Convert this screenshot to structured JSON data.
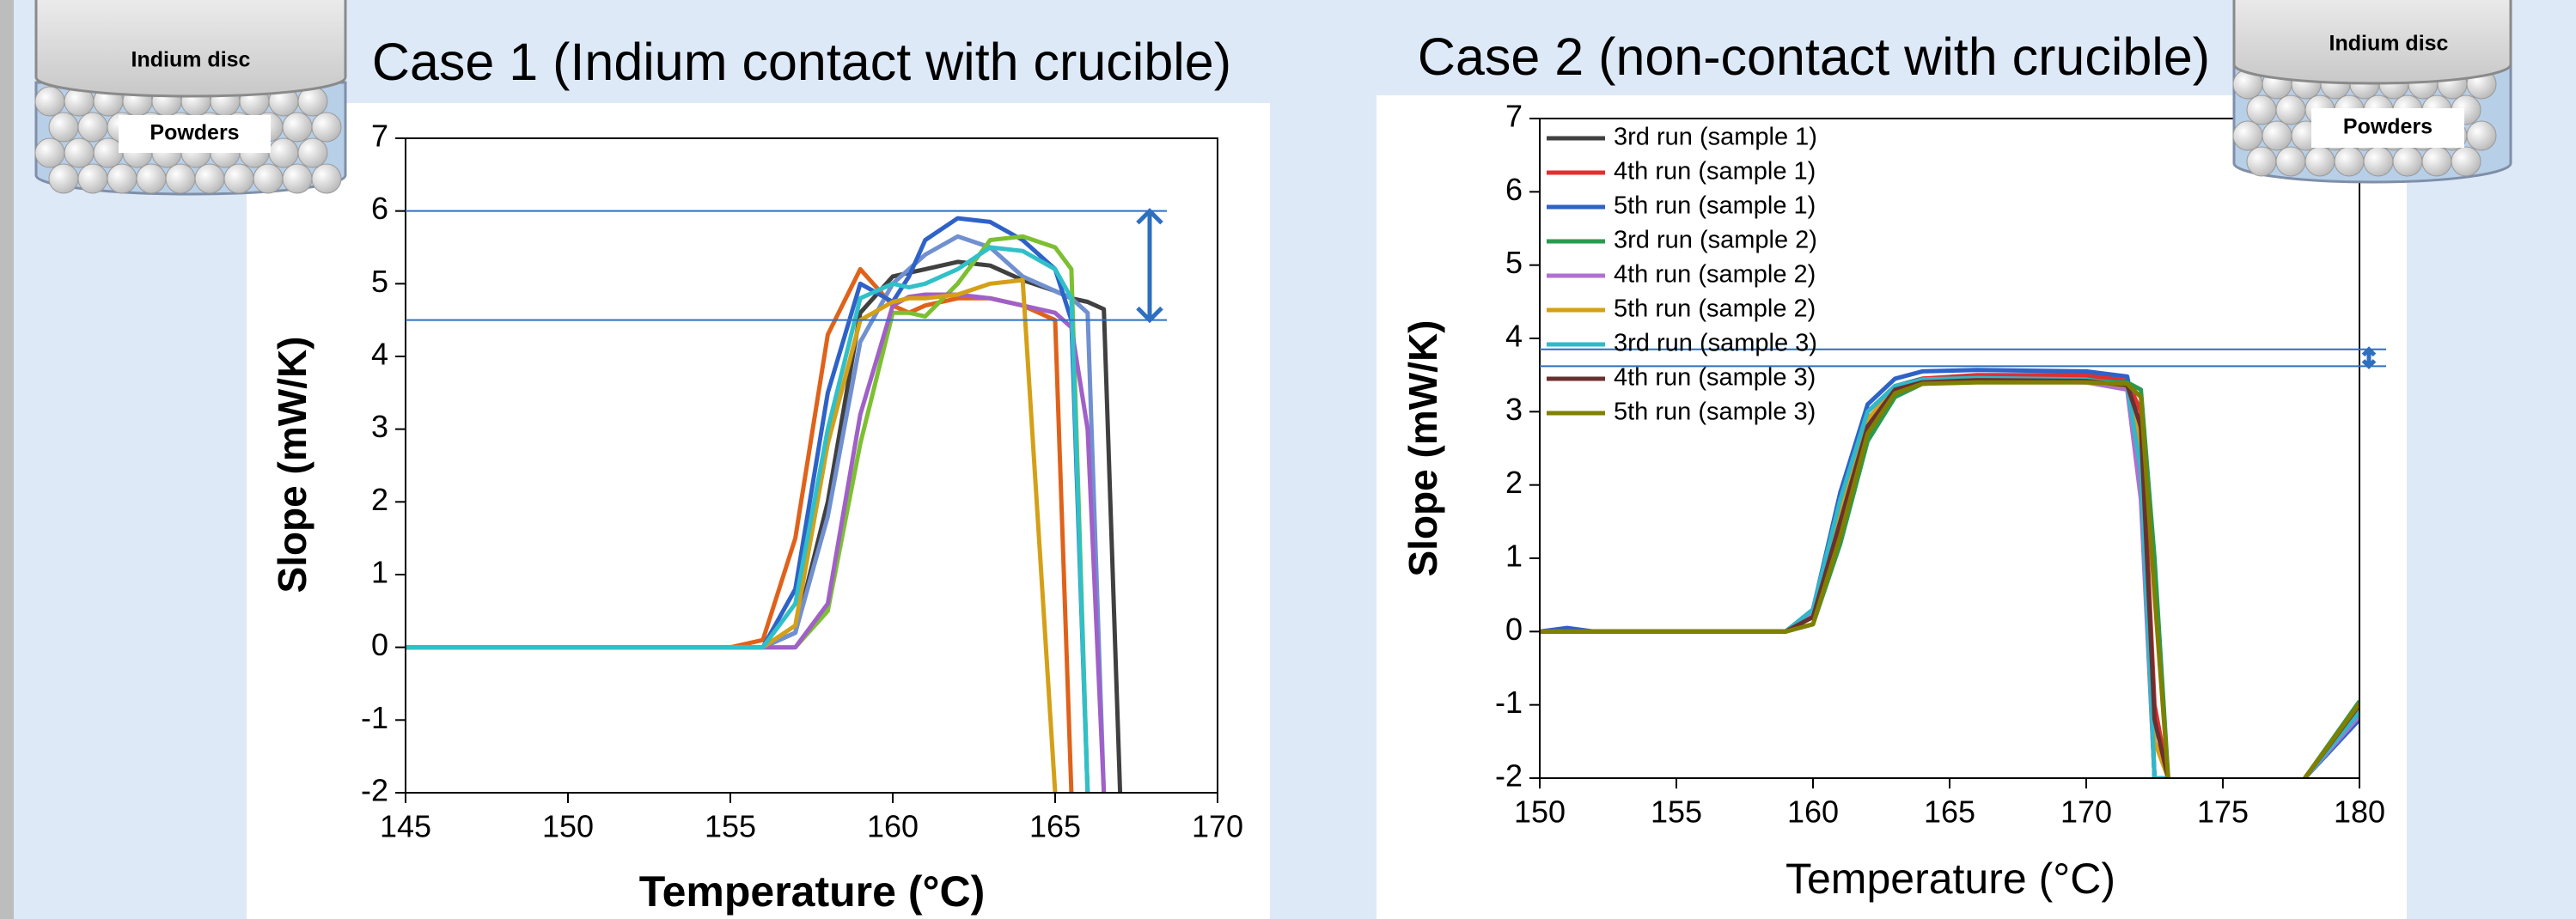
{
  "chart_data": [
    {
      "type": "line",
      "title": "Case 1 (Indium contact with crucible)",
      "x_label": "Temperature (°C)",
      "y_label": "Slope (mW/K)",
      "xlim": [
        145,
        170
      ],
      "xticks": [
        145,
        150,
        155,
        160,
        165,
        170
      ],
      "ylim": [
        -2,
        7
      ],
      "yticks": [
        -2,
        -1,
        0,
        1,
        2,
        3,
        4,
        5,
        6,
        7
      ],
      "hlines": [
        6,
        4.5
      ],
      "hline_color": "#2e6fc0",
      "x": [
        145,
        155,
        156,
        157,
        158,
        159,
        160,
        160.5,
        161,
        162,
        163,
        164,
        165,
        165.5,
        166,
        166.5,
        167
      ],
      "series": [
        {
          "color": "#404040",
          "values": [
            0,
            0,
            0,
            0.2,
            2.0,
            4.6,
            5.1,
            5.15,
            5.2,
            5.3,
            5.25,
            5.05,
            4.9,
            4.8,
            4.75,
            4.65,
            -2
          ]
        },
        {
          "color": "#e0621a",
          "values": [
            0,
            0,
            0.1,
            1.5,
            4.3,
            5.2,
            4.7,
            4.6,
            4.7,
            4.8,
            4.8,
            4.7,
            4.5,
            -2,
            null,
            null,
            null
          ]
        },
        {
          "color": "#7090d0",
          "values": [
            0,
            0,
            0,
            0.2,
            1.8,
            4.2,
            5.0,
            5.2,
            5.4,
            5.65,
            5.5,
            5.1,
            4.9,
            4.8,
            4.6,
            -2,
            null
          ]
        },
        {
          "color": "#2e62c8",
          "values": [
            0,
            0,
            0,
            0.8,
            3.5,
            5.0,
            4.75,
            5.1,
            5.6,
            5.9,
            5.85,
            5.6,
            5.2,
            4.5,
            -2,
            null,
            null
          ]
        },
        {
          "color": "#7cc031",
          "values": [
            0,
            0,
            0,
            0,
            0.5,
            2.8,
            4.6,
            4.6,
            4.55,
            5.0,
            5.6,
            5.65,
            5.5,
            5.2,
            -2,
            null,
            null
          ]
        },
        {
          "color": "#a060c8",
          "values": [
            0,
            0,
            0,
            0,
            0.6,
            3.2,
            4.7,
            4.82,
            4.85,
            4.85,
            4.8,
            4.7,
            4.6,
            4.4,
            3.0,
            -2,
            null
          ]
        },
        {
          "color": "#d4a017",
          "values": [
            0,
            0,
            0,
            0.3,
            2.8,
            4.5,
            4.75,
            4.8,
            4.8,
            4.85,
            5.0,
            5.05,
            -2,
            null,
            null,
            null,
            null
          ]
        },
        {
          "color": "#30c0c8",
          "values": [
            0,
            0,
            0,
            0.6,
            3.0,
            4.8,
            5.0,
            4.95,
            5.0,
            5.2,
            5.5,
            5.45,
            5.2,
            4.8,
            -2,
            null,
            null
          ]
        }
      ]
    },
    {
      "type": "line",
      "title": "Case 2 (non-contact with crucible)",
      "x_label": "Temperature (°C)",
      "y_label": "Slope (mW/K)",
      "xlim": [
        150,
        180
      ],
      "xticks": [
        150,
        155,
        160,
        165,
        170,
        175,
        180
      ],
      "ylim": [
        -2,
        7
      ],
      "yticks": [
        -2,
        -1,
        0,
        1,
        2,
        3,
        4,
        5,
        6,
        7
      ],
      "hlines": [
        3.85,
        3.62
      ],
      "hline_color": "#2e6fc0",
      "x": [
        150,
        151,
        152,
        159,
        160,
        161,
        162,
        163,
        164,
        166,
        170,
        171.5,
        172,
        172.5,
        173,
        175,
        178,
        180
      ],
      "series": [
        {
          "name": "3rd run (sample 1)",
          "color": "#404040",
          "values": [
            0,
            0,
            0,
            0,
            0.3,
            1.8,
            3.0,
            3.35,
            3.45,
            3.48,
            3.45,
            3.35,
            2.0,
            -2,
            -2,
            null,
            -2,
            -1.1
          ]
        },
        {
          "name": "4th run (sample 1)",
          "color": "#e03030",
          "values": [
            0,
            0,
            0,
            0,
            0.2,
            1.5,
            2.8,
            3.3,
            3.45,
            3.5,
            3.5,
            3.42,
            3.0,
            -1,
            -2,
            null,
            -2,
            -1.0
          ]
        },
        {
          "name": "5th run (sample 1)",
          "color": "#2e62c8",
          "values": [
            0,
            0.05,
            0,
            0,
            0.3,
            1.9,
            3.1,
            3.45,
            3.55,
            3.57,
            3.55,
            3.48,
            2.5,
            -2,
            -2,
            null,
            -2,
            -1.2
          ]
        },
        {
          "name": "3rd run (sample 2)",
          "color": "#2a9a50",
          "values": [
            0,
            0,
            0,
            0,
            0.1,
            1.2,
            2.6,
            3.2,
            3.38,
            3.42,
            3.42,
            3.4,
            3.3,
            1.0,
            -2,
            null,
            -2,
            -0.95
          ]
        },
        {
          "name": "4th run (sample 2)",
          "color": "#b070d0",
          "values": [
            0,
            0,
            0,
            0,
            0.25,
            1.7,
            2.9,
            3.3,
            3.4,
            3.42,
            3.4,
            3.3,
            1.8,
            -2,
            -2,
            null,
            -2,
            -1.15
          ]
        },
        {
          "name": "5th run (sample 2)",
          "color": "#d4a017",
          "values": [
            0,
            0,
            0,
            0,
            0.2,
            1.6,
            2.9,
            3.3,
            3.4,
            3.43,
            3.42,
            3.35,
            2.5,
            -1.5,
            -2,
            null,
            -2,
            -1.05
          ]
        },
        {
          "name": "3rd run (sample 3)",
          "color": "#30b8c8",
          "values": [
            0,
            0,
            0,
            0,
            0.3,
            1.8,
            3.0,
            3.35,
            3.44,
            3.46,
            3.44,
            3.36,
            2.2,
            -2,
            -2,
            null,
            -2,
            -1.1
          ]
        },
        {
          "name": "4th run (sample 3)",
          "color": "#6a3030",
          "values": [
            0,
            0,
            0,
            0,
            0.2,
            1.5,
            2.8,
            3.3,
            3.4,
            3.43,
            3.42,
            3.36,
            2.8,
            -1.2,
            -2,
            null,
            -2,
            -1.0
          ]
        },
        {
          "name": "5th run (sample 3)",
          "color": "#808000",
          "values": [
            0,
            0,
            0,
            0,
            0.1,
            1.3,
            2.7,
            3.25,
            3.38,
            3.4,
            3.4,
            3.38,
            3.2,
            0.5,
            -2,
            null,
            -2,
            -0.98
          ]
        }
      ]
    }
  ],
  "illustrations": [
    {
      "disc_label": "Indium disc",
      "powder_label": "Powders"
    },
    {
      "disc_label": "Indium disc",
      "powder_label": "Powders"
    }
  ]
}
